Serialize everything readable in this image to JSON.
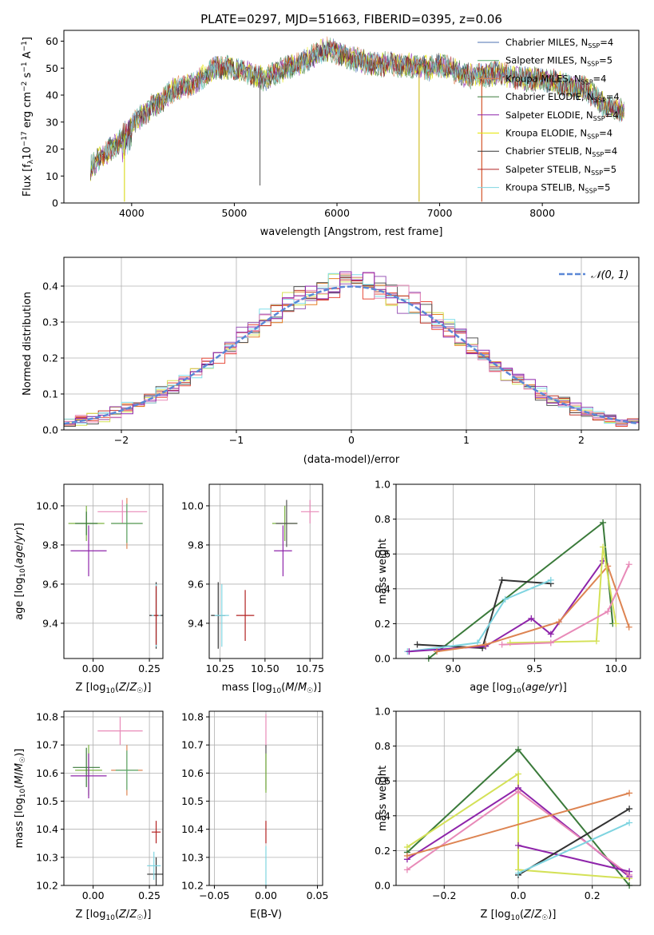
{
  "chart_data": [
    {
      "id": "spectrum",
      "type": "line",
      "title": "PLATE=0297, MJD=51663, FIBERID=0395, z=0.06",
      "xlabel": "wavelength [Angstrom, rest frame]",
      "ylabel": "Flux [f_λ 10^-17 erg cm^-2 s^-1 A^-1]",
      "xlim": [
        3340,
        8940
      ],
      "ylim": [
        0,
        64
      ],
      "xticks": [
        4000,
        5000,
        6000,
        7000,
        8000
      ],
      "yticks": [
        0,
        10,
        20,
        30,
        40,
        50,
        60
      ],
      "grid": false,
      "legend_position": "top-right",
      "continuum": [
        [
          3600,
          13
        ],
        [
          3700,
          17
        ],
        [
          3800,
          20
        ],
        [
          3900,
          24
        ],
        [
          4000,
          29
        ],
        [
          4100,
          32
        ],
        [
          4200,
          36
        ],
        [
          4300,
          38
        ],
        [
          4400,
          42
        ],
        [
          4500,
          43
        ],
        [
          4600,
          44
        ],
        [
          4700,
          47
        ],
        [
          4800,
          50
        ],
        [
          4900,
          50
        ],
        [
          5000,
          50
        ],
        [
          5100,
          49
        ],
        [
          5200,
          47
        ],
        [
          5300,
          46
        ],
        [
          5400,
          48
        ],
        [
          5500,
          50
        ],
        [
          5600,
          51
        ],
        [
          5700,
          53
        ],
        [
          5800,
          55
        ],
        [
          5900,
          57
        ],
        [
          6000,
          56
        ],
        [
          6100,
          54
        ],
        [
          6200,
          53
        ],
        [
          6300,
          52
        ],
        [
          6400,
          51
        ],
        [
          6500,
          52
        ],
        [
          6600,
          51
        ],
        [
          6700,
          51
        ],
        [
          6800,
          51
        ],
        [
          6900,
          50
        ],
        [
          7000,
          51
        ],
        [
          7100,
          50
        ],
        [
          7200,
          48
        ],
        [
          7300,
          47
        ],
        [
          7400,
          47
        ],
        [
          7500,
          48
        ],
        [
          7600,
          48
        ],
        [
          7700,
          47
        ],
        [
          7800,
          46
        ],
        [
          7900,
          46
        ],
        [
          8000,
          46
        ],
        [
          8100,
          45
        ],
        [
          8200,
          44
        ],
        [
          8300,
          43
        ],
        [
          8400,
          43
        ],
        [
          8500,
          40
        ],
        [
          8600,
          36
        ],
        [
          8700,
          35
        ],
        [
          8800,
          34
        ]
      ],
      "spikes": [
        {
          "x": 5250,
          "y": 6.5,
          "color": "#555555"
        },
        {
          "x": 6800,
          "y": 0.5,
          "color": "#c8b400"
        },
        {
          "x": 3930,
          "y": 0.5,
          "color": "#d4d400"
        },
        {
          "x": 7410,
          "y": 0.5,
          "color": "#cc3300"
        }
      ],
      "series": [
        {
          "name": "Chabrier MILES, N_SSP=4",
          "label_main": "Chabrier MILES, N",
          "label_sub": "SSP",
          "label_tail": "=4",
          "color": "#4c72b0"
        },
        {
          "name": "Salpeter MILES, N_SSP=5",
          "label_main": "Salpeter MILES, N",
          "label_sub": "SSP",
          "label_tail": "=5",
          "color": "#55a868"
        },
        {
          "name": "Kroupa MILES, N_SSP=4",
          "label_main": "Kroupa MILES, N",
          "label_sub": "SSP",
          "label_tail": "=4",
          "color": "#dd8452"
        },
        {
          "name": "Chabrier ELODIE, N_SSP=4",
          "label_main": "Chabrier ELODIE, N",
          "label_sub": "SSP",
          "label_tail": "=4",
          "color": "#3a7a3a"
        },
        {
          "name": "Salpeter ELODIE, N_SSP=4",
          "label_main": "Salpeter ELODIE, N",
          "label_sub": "SSP",
          "label_tail": "=4",
          "color": "#8e24aa"
        },
        {
          "name": "Kroupa ELODIE, N_SSP=4",
          "label_main": "Kroupa ELODIE, N",
          "label_sub": "SSP",
          "label_tail": "=4",
          "color": "#e6e600"
        },
        {
          "name": "Chabrier STELIB, N_SSP=4",
          "label_main": "Chabrier STELIB, N",
          "label_sub": "SSP",
          "label_tail": "=4",
          "color": "#333333"
        },
        {
          "name": "Salpeter STELIB, N_SSP=5",
          "label_main": "Salpeter STELIB, N",
          "label_sub": "SSP",
          "label_tail": "=5",
          "color": "#b22222"
        },
        {
          "name": "Kroupa STELIB, N_SSP=5",
          "label_main": "Kroupa STELIB, N",
          "label_sub": "SSP",
          "label_tail": "=5",
          "color": "#7fd4e0"
        }
      ]
    },
    {
      "id": "residuals",
      "type": "histogram",
      "xlabel": "(data-model)/error",
      "ylabel": "Normed distribution",
      "xlim": [
        -2.5,
        2.5
      ],
      "ylim": [
        0,
        0.48
      ],
      "xticks": [
        -2,
        -1,
        0,
        1,
        2
      ],
      "yticks": [
        0.0,
        0.1,
        0.2,
        0.3,
        0.4
      ],
      "grid": true,
      "legend_position": "top-right",
      "legend": "N(0,1)",
      "reference_curve": {
        "name": "N(0,1)",
        "color": "#5a87d6",
        "style": "dashed"
      },
      "bin_width": 0.1,
      "hist_colors": [
        "#e74c3c",
        "#e67e22",
        "#9b59b6",
        "#d4e157",
        "#c0392b",
        "#555555",
        "#80deea",
        "#e88ab8",
        "#8e24aa"
      ]
    },
    {
      "id": "age_vs_Z",
      "type": "scatter",
      "xlabel": "Z [log10(Z/Z☉)]",
      "ylabel": "age [log10(age/yr)]",
      "xlim": [
        -0.13,
        0.31
      ],
      "ylim": [
        9.22,
        10.11
      ],
      "xticks": [
        0.0,
        0.25
      ],
      "yticks": [
        9.4,
        9.6,
        9.8,
        10.0
      ],
      "grid": true,
      "points": [
        {
          "x": -0.03,
          "y": 9.91,
          "xerr": 0.08,
          "yerr": 0.09,
          "color": "#7cb342"
        },
        {
          "x": -0.03,
          "y": 9.91,
          "xerr": 0.05,
          "yerr": 0.06,
          "color": "#3a7a3a"
        },
        {
          "x": -0.02,
          "y": 9.77,
          "xerr": 0.08,
          "yerr": 0.13,
          "color": "#8e24aa"
        },
        {
          "x": 0.13,
          "y": 9.97,
          "xerr": 0.11,
          "yerr": 0.06,
          "color": "#e88ab8"
        },
        {
          "x": 0.15,
          "y": 9.91,
          "xerr": 0.07,
          "yerr": 0.13,
          "color": "#dd8452"
        },
        {
          "x": 0.15,
          "y": 9.91,
          "xerr": 0.07,
          "yerr": 0.1,
          "color": "#55a868"
        },
        {
          "x": 0.28,
          "y": 9.44,
          "xerr": 0.03,
          "yerr": 0.17,
          "color": "#333333"
        },
        {
          "x": 0.28,
          "y": 9.44,
          "xerr": 0.02,
          "yerr": 0.16,
          "color": "#7fd4e0"
        },
        {
          "x": 0.28,
          "y": 9.44,
          "xerr": 0.01,
          "yerr": 0.15,
          "color": "#b22222"
        }
      ]
    },
    {
      "id": "age_vs_mass",
      "type": "scatter",
      "xlabel": "mass [log10(M/M☉)]",
      "ylabel": "",
      "xlim": [
        10.19,
        10.82
      ],
      "ylim": [
        9.22,
        10.11
      ],
      "xticks": [
        10.25,
        10.5,
        10.75
      ],
      "yticks": [
        9.4,
        9.6,
        9.8,
        10.0
      ],
      "grid": true,
      "points": [
        {
          "x": 10.61,
          "y": 9.91,
          "xerr": 0.07,
          "yerr": 0.09,
          "color": "#7cb342"
        },
        {
          "x": 10.62,
          "y": 9.91,
          "xerr": 0.06,
          "yerr": 0.12,
          "color": "#555555"
        },
        {
          "x": 10.6,
          "y": 9.77,
          "xerr": 0.05,
          "yerr": 0.13,
          "color": "#8e24aa"
        },
        {
          "x": 10.75,
          "y": 9.97,
          "xerr": 0.05,
          "yerr": 0.06,
          "color": "#e88ab8"
        },
        {
          "x": 10.24,
          "y": 9.44,
          "xerr": 0.04,
          "yerr": 0.17,
          "color": "#333333"
        },
        {
          "x": 10.26,
          "y": 9.44,
          "xerr": 0.04,
          "yerr": 0.16,
          "color": "#7fd4e0"
        },
        {
          "x": 10.39,
          "y": 9.44,
          "xerr": 0.05,
          "yerr": 0.13,
          "color": "#b22222"
        }
      ]
    },
    {
      "id": "weight_vs_age",
      "type": "line",
      "xlabel": "age  [log10(age/yr)]",
      "ylabel": "mass weight",
      "xlim": [
        8.65,
        10.15
      ],
      "ylim": [
        0.0,
        1.0
      ],
      "xticks": [
        9.0,
        9.5,
        10.0
      ],
      "yticks": [
        0.0,
        0.2,
        0.4,
        0.6,
        0.8,
        1.0
      ],
      "grid": true,
      "series": [
        {
          "color": "#3a7a3a",
          "points": [
            [
              8.85,
              0.0
            ],
            [
              9.92,
              0.78
            ],
            [
              9.98,
              0.2
            ]
          ]
        },
        {
          "color": "#333333",
          "points": [
            [
              8.78,
              0.08
            ],
            [
              9.18,
              0.06
            ],
            [
              9.3,
              0.45
            ],
            [
              9.6,
              0.43
            ]
          ]
        },
        {
          "color": "#7fd4e0",
          "points": [
            [
              8.72,
              0.04
            ],
            [
              9.15,
              0.09
            ],
            [
              9.32,
              0.34
            ],
            [
              9.6,
              0.45
            ]
          ]
        },
        {
          "color": "#8e24aa",
          "points": [
            [
              8.73,
              0.04
            ],
            [
              9.2,
              0.07
            ],
            [
              9.48,
              0.23
            ],
            [
              9.6,
              0.14
            ],
            [
              9.92,
              0.56
            ]
          ]
        },
        {
          "color": "#dd8452",
          "points": [
            [
              8.9,
              0.04
            ],
            [
              9.2,
              0.08
            ],
            [
              9.65,
              0.21
            ],
            [
              9.95,
              0.53
            ],
            [
              10.08,
              0.18
            ]
          ]
        },
        {
          "color": "#d4e157",
          "points": [
            [
              9.35,
              0.09
            ],
            [
              9.88,
              0.1
            ],
            [
              9.92,
              0.64
            ],
            [
              10.0,
              0.2
            ]
          ]
        },
        {
          "color": "#e88ab8",
          "points": [
            [
              9.3,
              0.08
            ],
            [
              9.6,
              0.09
            ],
            [
              9.95,
              0.27
            ],
            [
              10.08,
              0.54
            ]
          ]
        }
      ]
    },
    {
      "id": "mass_vs_Z",
      "type": "scatter",
      "xlabel": "Z [log10(Z/Z☉)]",
      "ylabel": "mass [log10(M/M☉)]",
      "xlim": [
        -0.13,
        0.31
      ],
      "ylim": [
        10.2,
        10.82
      ],
      "xticks": [
        0.0,
        0.25
      ],
      "yticks": [
        10.2,
        10.3,
        10.4,
        10.5,
        10.6,
        10.7,
        10.8
      ],
      "grid": true,
      "points": [
        {
          "x": -0.02,
          "y": 10.61,
          "xerr": 0.06,
          "yerr": 0.09,
          "color": "#7cb342"
        },
        {
          "x": -0.03,
          "y": 10.62,
          "xerr": 0.06,
          "yerr": 0.07,
          "color": "#3a7a3a"
        },
        {
          "x": -0.02,
          "y": 10.59,
          "xerr": 0.08,
          "yerr": 0.08,
          "color": "#8e24aa"
        },
        {
          "x": 0.12,
          "y": 10.75,
          "xerr": 0.1,
          "yerr": 0.05,
          "color": "#e88ab8"
        },
        {
          "x": 0.15,
          "y": 10.61,
          "xerr": 0.07,
          "yerr": 0.09,
          "color": "#dd8452"
        },
        {
          "x": 0.15,
          "y": 10.61,
          "xerr": 0.05,
          "yerr": 0.07,
          "color": "#55a868"
        },
        {
          "x": 0.28,
          "y": 10.24,
          "xerr": 0.04,
          "yerr": 0.06,
          "color": "#333333"
        },
        {
          "x": 0.27,
          "y": 10.27,
          "xerr": 0.03,
          "yerr": 0.05,
          "color": "#7fd4e0"
        },
        {
          "x": 0.28,
          "y": 10.39,
          "xerr": 0.02,
          "yerr": 0.04,
          "color": "#b22222"
        }
      ]
    },
    {
      "id": "mass_vs_ebv",
      "type": "scatter",
      "xlabel": "E(B-V)",
      "ylabel": "",
      "xlim": [
        -0.055,
        0.055
      ],
      "ylim": [
        10.2,
        10.82
      ],
      "xticks": [
        -0.05,
        0.0,
        0.05
      ],
      "yticks": [
        10.2,
        10.3,
        10.4,
        10.5,
        10.6,
        10.7,
        10.8
      ],
      "grid": true,
      "points": [
        {
          "x": 0.0,
          "y": 10.75,
          "xerr": 0.0,
          "yerr": 0.06,
          "color": "#e88ab8"
        },
        {
          "x": 0.0,
          "y": 10.62,
          "xerr": 0.0,
          "yerr": 0.08,
          "color": "#555555"
        },
        {
          "x": 0.0,
          "y": 10.6,
          "xerr": 0.0,
          "yerr": 0.07,
          "color": "#7cb342"
        },
        {
          "x": 0.0,
          "y": 10.39,
          "xerr": 0.0,
          "yerr": 0.04,
          "color": "#b22222"
        },
        {
          "x": 0.0,
          "y": 10.27,
          "xerr": 0.0,
          "yerr": 0.07,
          "color": "#7fd4e0"
        }
      ]
    },
    {
      "id": "weight_vs_Z",
      "type": "line",
      "xlabel": "Z [log10(Z/Z☉)]",
      "ylabel": "mass weight",
      "xlim": [
        -0.33,
        0.33
      ],
      "ylim": [
        0.0,
        1.0
      ],
      "xticks": [
        -0.2,
        0.0,
        0.2
      ],
      "yticks": [
        0.0,
        0.2,
        0.4,
        0.6,
        0.8,
        1.0
      ],
      "grid": true,
      "series": [
        {
          "color": "#3a7a3a",
          "points": [
            [
              -0.3,
              0.19
            ],
            [
              0.0,
              0.78
            ],
            [
              0.3,
              0.0
            ]
          ]
        },
        {
          "color": "#d4e157",
          "points": [
            [
              -0.3,
              0.22
            ],
            [
              0.0,
              0.64
            ],
            [
              0.0,
              0.09
            ],
            [
              0.3,
              0.04
            ]
          ]
        },
        {
          "color": "#8e24aa",
          "points": [
            [
              -0.3,
              0.15
            ],
            [
              0.0,
              0.56
            ],
            [
              0.3,
              0.05
            ]
          ]
        },
        {
          "color": "#e88ab8",
          "points": [
            [
              -0.3,
              0.09
            ],
            [
              0.0,
              0.54
            ],
            [
              0.3,
              0.06
            ]
          ]
        },
        {
          "color": "#dd8452",
          "points": [
            [
              -0.3,
              0.17
            ],
            [
              0.3,
              0.53
            ]
          ]
        },
        {
          "color": "#8e24aa",
          "points": [
            [
              0.0,
              0.23
            ],
            [
              0.3,
              0.08
            ]
          ]
        },
        {
          "color": "#333333",
          "points": [
            [
              0.0,
              0.06
            ],
            [
              0.3,
              0.44
            ]
          ]
        },
        {
          "color": "#7fd4e0",
          "points": [
            [
              0.0,
              0.07
            ],
            [
              0.3,
              0.36
            ]
          ]
        }
      ]
    }
  ]
}
